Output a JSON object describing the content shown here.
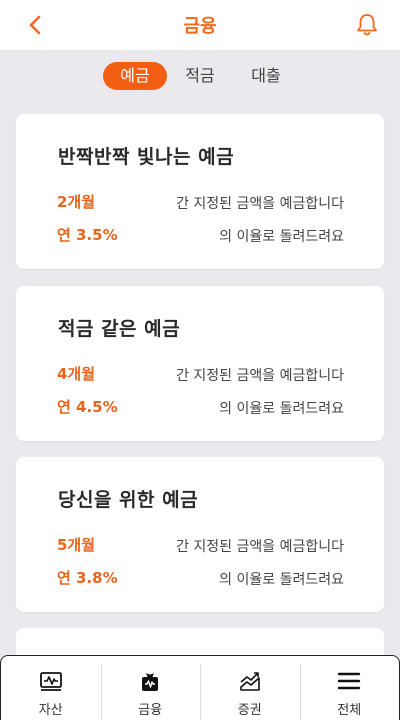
{
  "header": {
    "title": "금융",
    "back_icon": "chevron-left-icon",
    "bell_icon": "bell-icon"
  },
  "tabs": [
    {
      "label": "예금",
      "active": true
    },
    {
      "label": "적금",
      "active": false
    },
    {
      "label": "대출",
      "active": false
    }
  ],
  "cards": [
    {
      "title": "반짝반짝 빛나는 예금",
      "period": "2개월",
      "rate": "연 3.5%",
      "desc_line1": "간 지정된 금액을 예금합니다",
      "desc_line2": "의 이율로 돌려드려요"
    },
    {
      "title": "적금 같은 예금",
      "period": "4개월",
      "rate": "연 4.5%",
      "desc_line1": "간 지정된 금액을 예금합니다",
      "desc_line2": "의 이율로 돌려드려요"
    },
    {
      "title": "당신을 위한 예금",
      "period": "5개월",
      "rate": "연 3.8%",
      "desc_line1": "간 지정된 금액을 예금합니다",
      "desc_line2": "의 이율로 돌려드려요"
    }
  ],
  "bottom_nav": [
    {
      "label": "자산",
      "icon": "wallet-icon"
    },
    {
      "label": "금융",
      "icon": "money-bag-icon"
    },
    {
      "label": "증권",
      "icon": "stock-chart-icon"
    },
    {
      "label": "전체",
      "icon": "hamburger-menu-icon"
    }
  ],
  "colors": {
    "accent": "#f25f13",
    "rate_text": "#e8641c",
    "background": "#e9e9ee"
  }
}
